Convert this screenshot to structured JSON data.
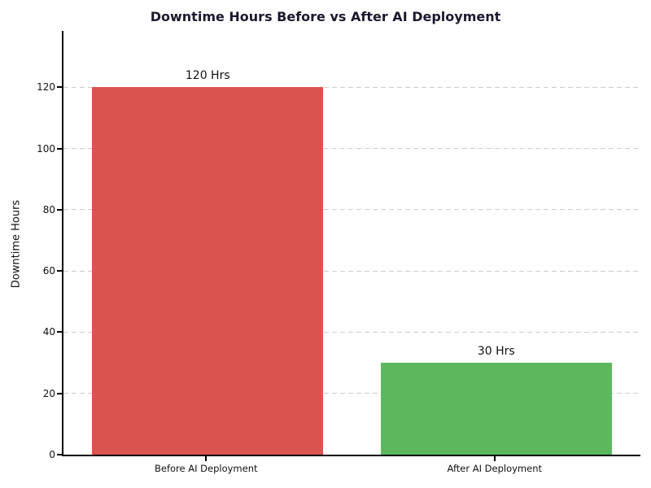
{
  "chart_data": {
    "type": "bar",
    "title": "Downtime Hours Before vs After AI Deployment",
    "xlabel": "",
    "ylabel": "Downtime Hours",
    "categories": [
      "Before AI Deployment",
      "After AI Deployment"
    ],
    "values": [
      120,
      30
    ],
    "bar_labels": [
      "120 Hrs",
      "30 Hrs"
    ],
    "bar_colors": [
      "#d9534f",
      "#5cb85c"
    ],
    "yticks": [
      0,
      20,
      40,
      60,
      80,
      100,
      120
    ],
    "ylim": [
      0,
      138.4
    ],
    "bar_width_fraction": 0.8,
    "grid": "horizontal-dashed",
    "grid_color": "#cccccc",
    "title_color": "#1a1a2e",
    "legend": "none"
  }
}
